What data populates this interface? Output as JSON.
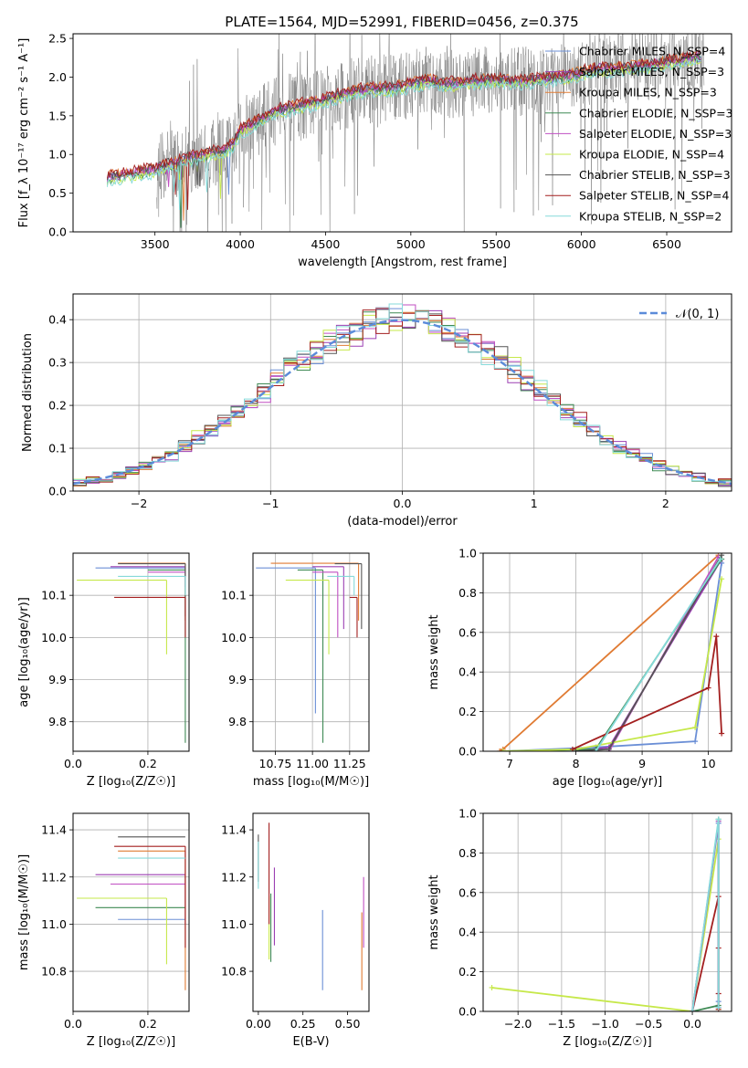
{
  "figure": {
    "title": "PLATE=1564, MJD=52991, FIBERID=0456, z=0.375"
  },
  "colors": {
    "chabrier_miles": "#6b8fd6",
    "salpeter_miles": "#9b3fb2",
    "kroupa_miles": "#e07b33",
    "chabrier_elodie": "#3f8a55",
    "salpeter_elodie": "#c04fc2",
    "kroupa_elodie": "#c6e84a",
    "chabrier_stelib": "#555555",
    "salpeter_stelib": "#a31f1f",
    "kroupa_stelib": "#86dada",
    "data": "#808080",
    "normal": "#5b8bd9"
  },
  "chart_data": [
    {
      "id": "spectrum",
      "type": "line",
      "xlabel": "wavelength [Angstrom, rest frame]",
      "ylabel": "Flux [f_λ 10⁻¹⁷ erg cm⁻² s⁻¹ A⁻¹]",
      "xlim": [
        3020,
        6880
      ],
      "ylim": [
        0,
        2.56
      ],
      "xticks": [
        3500,
        4000,
        4500,
        5000,
        5500,
        6000,
        6500
      ],
      "yticks": [
        0.0,
        0.5,
        1.0,
        1.5,
        2.0,
        2.5
      ],
      "grid": false,
      "legend_position": "top-right",
      "model_breakpoints": {
        "x": [
          3220,
          3300,
          3400,
          3500,
          3600,
          3700,
          3800,
          3900,
          3950,
          4000,
          4100,
          4200,
          4300,
          4400,
          4500,
          4600,
          4700,
          4800,
          4900,
          5000,
          5100,
          5200,
          5300,
          5400,
          5500,
          5600,
          5700,
          5800,
          5900,
          6000,
          6100,
          6200,
          6300,
          6400,
          6500,
          6600,
          6700
        ],
        "y": [
          0.7,
          0.72,
          0.76,
          0.8,
          0.88,
          0.95,
          1.0,
          1.04,
          1.1,
          1.3,
          1.42,
          1.55,
          1.6,
          1.65,
          1.7,
          1.77,
          1.82,
          1.84,
          1.85,
          1.9,
          1.95,
          1.9,
          1.92,
          1.95,
          1.96,
          1.94,
          1.95,
          1.97,
          2.0,
          2.05,
          2.1,
          2.1,
          2.12,
          2.15,
          2.18,
          2.22,
          2.25
        ]
      },
      "data_x_range": [
        3510,
        6720
      ],
      "series": [
        {
          "name": "Chabrier MILES, N_SSP=4",
          "color_key": "chabrier_miles",
          "offset": 0.0
        },
        {
          "name": "Salpeter MILES, N_SSP=3",
          "color_key": "salpeter_miles",
          "offset": 0.02
        },
        {
          "name": "Kroupa MILES, N_SSP=3",
          "color_key": "kroupa_miles",
          "offset": 0.04
        },
        {
          "name": "Chabrier ELODIE, N_SSP=3",
          "color_key": "chabrier_elodie",
          "offset": -0.02
        },
        {
          "name": "Salpeter ELODIE, N_SSP=3",
          "color_key": "salpeter_elodie",
          "offset": 0.01
        },
        {
          "name": "Kroupa ELODIE, N_SSP=4",
          "color_key": "kroupa_elodie",
          "offset": -0.04
        },
        {
          "name": "Chabrier STELIB, N_SSP=3",
          "color_key": "chabrier_stelib",
          "offset": 0.03
        },
        {
          "name": "Salpeter STELIB, N_SSP=4",
          "color_key": "salpeter_stelib",
          "offset": 0.05
        },
        {
          "name": "Kroupa STELIB, N_SSP=2",
          "color_key": "kroupa_stelib",
          "offset": -0.06
        }
      ]
    },
    {
      "id": "residuals",
      "type": "line",
      "xlabel": "(data-model)/error",
      "ylabel": "Normed distribution",
      "xlim": [
        -2.5,
        2.5
      ],
      "ylim": [
        0,
        0.46
      ],
      "xticks": [
        -2,
        -1,
        0,
        1,
        2
      ],
      "yticks": [
        0.0,
        0.1,
        0.2,
        0.3,
        0.4
      ],
      "grid": true,
      "legend_position": "top-right",
      "legend_label": "𝒩(0, 1)",
      "bin_width": 0.1,
      "series_color_keys": [
        "chabrier_miles",
        "salpeter_miles",
        "kroupa_miles",
        "chabrier_elodie",
        "salpeter_elodie",
        "kroupa_elodie",
        "chabrier_stelib",
        "salpeter_stelib",
        "kroupa_stelib"
      ]
    },
    {
      "id": "age_vs_Z",
      "type": "scatter",
      "xlabel": "Z [log₁₀(Z/Z☉)]",
      "ylabel": "age  [log₁₀(age/yr)]",
      "xlim": [
        0.0,
        0.31
      ],
      "ylim": [
        9.73,
        10.2
      ],
      "xticks": [
        0.0,
        0.2
      ],
      "yticks": [
        9.8,
        9.9,
        10.0,
        10.1
      ],
      "grid": true,
      "points": [
        {
          "color_key": "chabrier_miles",
          "x": 0.3,
          "y": 10.165,
          "xlo": 0.06,
          "ylo": 10.16
        },
        {
          "color_key": "salpeter_miles",
          "x": 0.3,
          "y": 10.168,
          "xlo": 0.1,
          "ylo": 10.16
        },
        {
          "color_key": "kroupa_miles",
          "x": 0.3,
          "y": 10.176,
          "xlo": 0.12,
          "ylo": 10.04
        },
        {
          "color_key": "chabrier_elodie",
          "x": 0.3,
          "y": 10.16,
          "xlo": 0.2,
          "ylo": 9.75
        },
        {
          "color_key": "salpeter_elodie",
          "x": 0.3,
          "y": 10.155,
          "xlo": 0.2,
          "ylo": 10.12
        },
        {
          "color_key": "kroupa_elodie",
          "x": 0.25,
          "y": 10.136,
          "xlo": 0.01,
          "ylo": 9.96
        },
        {
          "color_key": "chabrier_stelib",
          "x": 0.3,
          "y": 10.175,
          "xlo": 0.12,
          "ylo": 10.05
        },
        {
          "color_key": "salpeter_stelib",
          "x": 0.3,
          "y": 10.095,
          "xlo": 0.11,
          "ylo": 10.0
        },
        {
          "color_key": "kroupa_stelib",
          "x": 0.3,
          "y": 10.145,
          "xlo": 0.12,
          "ylo": 10.1
        }
      ]
    },
    {
      "id": "age_vs_mass",
      "type": "scatter",
      "xlabel": "mass [log₁₀(M/M☉)]",
      "ylabel": "",
      "xlim": [
        10.6,
        11.38
      ],
      "ylim": [
        9.73,
        10.2
      ],
      "xticks": [
        10.75,
        11.0,
        11.25
      ],
      "xticklabels": [
        "10.75",
        "11.00",
        "11.25"
      ],
      "yticks": [
        9.8,
        9.9,
        10.0,
        10.1
      ],
      "grid": true,
      "points": [
        {
          "color_key": "chabrier_miles",
          "x": 11.02,
          "y": 10.165,
          "xlo": 10.62,
          "ylo": 9.82
        },
        {
          "color_key": "salpeter_miles",
          "x": 11.21,
          "y": 10.168,
          "xlo": 11.0,
          "ylo": 10.02
        },
        {
          "color_key": "kroupa_miles",
          "x": 11.31,
          "y": 10.176,
          "xlo": 10.72,
          "ylo": 10.04
        },
        {
          "color_key": "chabrier_elodie",
          "x": 11.07,
          "y": 10.16,
          "xlo": 10.9,
          "ylo": 9.75
        },
        {
          "color_key": "salpeter_elodie",
          "x": 11.17,
          "y": 10.155,
          "xlo": 11.0,
          "ylo": 10.0
        },
        {
          "color_key": "kroupa_elodie",
          "x": 11.11,
          "y": 10.136,
          "xlo": 10.82,
          "ylo": 9.96
        },
        {
          "color_key": "chabrier_stelib",
          "x": 11.33,
          "y": 10.175,
          "xlo": 11.15,
          "ylo": 10.02
        },
        {
          "color_key": "salpeter_stelib",
          "x": 11.3,
          "y": 10.095,
          "xlo": 11.25,
          "ylo": 10.0
        },
        {
          "color_key": "kroupa_stelib",
          "x": 11.28,
          "y": 10.145,
          "xlo": 11.1,
          "ylo": 10.1
        }
      ]
    },
    {
      "id": "weight_vs_age",
      "type": "line",
      "xlabel": "age  [log₁₀(age/yr)]",
      "ylabel": "mass weight",
      "xlim": [
        6.6,
        10.35
      ],
      "ylim": [
        0,
        1
      ],
      "xticks": [
        7,
        8,
        9,
        10
      ],
      "yticks": [
        0.0,
        0.2,
        0.4,
        0.6,
        0.8,
        1.0
      ],
      "grid": true,
      "series": [
        {
          "color_key": "chabrier_miles",
          "x": [
            6.9,
            8.3,
            9.8,
            10.2
          ],
          "y": [
            0.0,
            0.02,
            0.05,
            0.95
          ]
        },
        {
          "color_key": "salpeter_miles",
          "x": [
            8.0,
            8.5,
            10.18
          ],
          "y": [
            0.0,
            0.02,
            0.96
          ]
        },
        {
          "color_key": "kroupa_miles",
          "x": [
            6.85,
            6.9,
            10.15
          ],
          "y": [
            0.0,
            0.01,
            0.99
          ]
        },
        {
          "color_key": "chabrier_elodie",
          "x": [
            6.9,
            8.3,
            10.2
          ],
          "y": [
            0.0,
            0.01,
            0.97
          ]
        },
        {
          "color_key": "salpeter_elodie",
          "x": [
            8.5,
            10.15
          ],
          "y": [
            0.0,
            0.98
          ]
        },
        {
          "color_key": "kroupa_elodie",
          "x": [
            6.9,
            8.0,
            9.8,
            10.2
          ],
          "y": [
            0.0,
            0.01,
            0.12,
            0.87
          ]
        },
        {
          "color_key": "chabrier_stelib",
          "x": [
            8.0,
            8.5,
            10.2
          ],
          "y": [
            0.0,
            0.01,
            0.99
          ]
        },
        {
          "color_key": "salpeter_stelib",
          "x": [
            7.95,
            10.0,
            10.12,
            10.2
          ],
          "y": [
            0.01,
            0.32,
            0.58,
            0.09
          ]
        },
        {
          "color_key": "kroupa_stelib",
          "x": [
            8.3,
            10.18
          ],
          "y": [
            0.0,
            0.97
          ]
        }
      ]
    },
    {
      "id": "mass_vs_Z",
      "type": "scatter",
      "xlabel": "Z [log₁₀(Z/Z☉)]",
      "ylabel": "mass [log₁₀(M/M☉)]",
      "xlim": [
        0.0,
        0.31
      ],
      "ylim": [
        10.63,
        11.47
      ],
      "xticks": [
        0.0,
        0.2
      ],
      "yticks": [
        10.8,
        11.0,
        11.2,
        11.4
      ],
      "grid": true,
      "points": [
        {
          "color_key": "chabrier_miles",
          "x": 0.3,
          "y": 11.02,
          "xlo": 0.12
        },
        {
          "color_key": "salpeter_miles",
          "x": 0.3,
          "y": 11.21,
          "xlo": 0.06,
          "ylo": 11.0
        },
        {
          "color_key": "kroupa_miles",
          "x": 0.3,
          "y": 11.31,
          "xlo": 0.12,
          "ylo": 10.72
        },
        {
          "color_key": "chabrier_elodie",
          "x": 0.3,
          "y": 11.07,
          "xlo": 0.06
        },
        {
          "color_key": "salpeter_elodie",
          "x": 0.3,
          "y": 11.17,
          "xlo": 0.1
        },
        {
          "color_key": "kroupa_elodie",
          "x": 0.25,
          "y": 11.11,
          "xlo": 0.01,
          "ylo": 10.83
        },
        {
          "color_key": "chabrier_stelib",
          "x": 0.3,
          "y": 11.37,
          "xlo": 0.12
        },
        {
          "color_key": "salpeter_stelib",
          "x": 0.3,
          "y": 11.33,
          "xlo": 0.11,
          "ylo": 10.9
        },
        {
          "color_key": "kroupa_stelib",
          "x": 0.3,
          "y": 11.28,
          "xlo": 0.12
        }
      ]
    },
    {
      "id": "mass_vs_ebv",
      "type": "scatter",
      "xlabel": "E(B-V)",
      "ylabel": "",
      "xlim": [
        -0.03,
        0.62
      ],
      "ylim": [
        10.63,
        11.47
      ],
      "xticks": [
        0.0,
        0.25,
        0.5
      ],
      "xticklabels": [
        "0.00",
        "0.25",
        "0.50"
      ],
      "yticks": [
        10.8,
        11.0,
        11.2,
        11.4
      ],
      "grid": false,
      "points": [
        {
          "color_key": "chabrier_miles",
          "x": 0.36,
          "ylo": 10.72,
          "yhi": 11.06
        },
        {
          "color_key": "salpeter_miles",
          "x": 0.09,
          "ylo": 10.91,
          "yhi": 11.24
        },
        {
          "color_key": "kroupa_miles",
          "x": 0.58,
          "ylo": 10.72,
          "yhi": 11.05
        },
        {
          "color_key": "chabrier_elodie",
          "x": 0.07,
          "ylo": 10.84,
          "yhi": 11.13
        },
        {
          "color_key": "salpeter_elodie",
          "x": 0.59,
          "ylo": 10.9,
          "yhi": 11.2
        },
        {
          "color_key": "kroupa_elodie",
          "x": 0.06,
          "ylo": 10.85,
          "yhi": 11.12
        },
        {
          "color_key": "chabrier_stelib",
          "x": 0.0,
          "ylo": 11.18,
          "yhi": 11.38
        },
        {
          "color_key": "salpeter_stelib",
          "x": 0.06,
          "ylo": 11.0,
          "yhi": 11.43
        },
        {
          "color_key": "kroupa_stelib",
          "x": 0.0,
          "ylo": 11.15,
          "yhi": 11.35
        }
      ]
    },
    {
      "id": "weight_vs_Z",
      "type": "line",
      "xlabel": "Z [log₁₀(Z/Z☉)]",
      "ylabel": "mass weight",
      "xlim": [
        -2.4,
        0.45
      ],
      "ylim": [
        0,
        1
      ],
      "xticks": [
        -2.0,
        -1.5,
        -1.0,
        -0.5,
        0.0
      ],
      "yticks": [
        0.0,
        0.2,
        0.4,
        0.6,
        0.8,
        1.0
      ],
      "grid": true,
      "series": [
        {
          "color_key": "kroupa_elodie",
          "x": [
            -2.3,
            0.0,
            0.3,
            0.3
          ],
          "y": [
            0.12,
            0.0,
            0.87,
            0.01
          ]
        },
        {
          "color_key": "chabrier_elodie",
          "x": [
            0.0,
            0.3,
            0.3
          ],
          "y": [
            0.0,
            0.03,
            0.97
          ]
        },
        {
          "color_key": "salpeter_stelib",
          "x": [
            0.0,
            0.3,
            0.3,
            0.3,
            0.3
          ],
          "y": [
            0.0,
            0.58,
            0.32,
            0.09,
            0.01
          ]
        },
        {
          "color_key": "chabrier_miles",
          "x": [
            0.0,
            0.3,
            0.3
          ],
          "y": [
            0.0,
            0.95,
            0.05
          ]
        },
        {
          "color_key": "salpeter_miles",
          "x": [
            0.0,
            0.3,
            0.3
          ],
          "y": [
            0.0,
            0.96,
            0.02
          ]
        },
        {
          "color_key": "kroupa_stelib",
          "x": [
            0.0,
            0.3,
            0.3
          ],
          "y": [
            0.0,
            0.97,
            0.02
          ]
        }
      ]
    }
  ]
}
